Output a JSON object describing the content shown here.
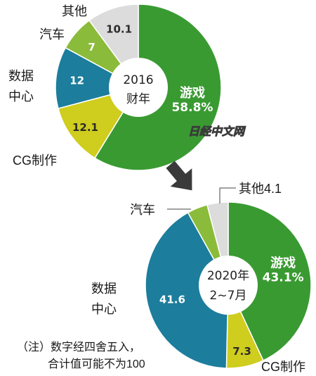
{
  "watermark": "日经中文网",
  "note": {
    "line1": "（注）数字经四舍五入，",
    "line2": "合计值可能不为100"
  },
  "chart_data": [
    {
      "type": "pie",
      "center_label": [
        "2016",
        "财年"
      ],
      "slices": [
        {
          "name": "游戏",
          "value": 58.8,
          "value_label": "58.8%",
          "color": "#3a9a32"
        },
        {
          "name": "CG制作",
          "value": 12.1,
          "value_label": "12.1",
          "color": "#cfcd1d"
        },
        {
          "name": "数据中心",
          "value": 12,
          "value_label": "12",
          "color": "#1c7d9c"
        },
        {
          "name": "汽车",
          "value": 7,
          "value_label": "7",
          "color": "#8bbb3a"
        },
        {
          "name": "其他",
          "value": 10.1,
          "value_label": "10.1",
          "color": "#dcdcdc"
        }
      ]
    },
    {
      "type": "pie",
      "center_label": [
        "2020年",
        "2~7月"
      ],
      "slices": [
        {
          "name": "游戏",
          "value": 43.1,
          "value_label": "43.1%",
          "color": "#3a9a32"
        },
        {
          "name": "CG制作",
          "value": 7.3,
          "value_label": "7.3",
          "color": "#cfcd1d"
        },
        {
          "name": "数据中心",
          "value": 41.6,
          "value_label": "41.6",
          "color": "#1c7d9c"
        },
        {
          "name": "汽车",
          "value": 4,
          "value_label": "",
          "color": "#8bbb3a"
        },
        {
          "name": "其他",
          "value": 4.1,
          "value_label": "",
          "color": "#dcdcdc"
        }
      ]
    }
  ]
}
